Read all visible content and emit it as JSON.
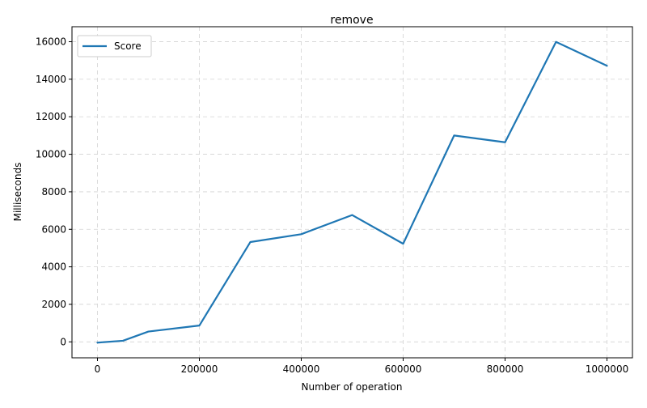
{
  "chart_data": {
    "type": "line",
    "title": "remove",
    "xlabel": "Number of operation",
    "ylabel": "Milliseconds",
    "x": [
      0,
      50000,
      100000,
      200000,
      300000,
      400000,
      500000,
      600000,
      700000,
      800000,
      900000,
      1000000
    ],
    "series": [
      {
        "name": "Score",
        "color": "#1f77b4",
        "values": [
          -40,
          60,
          550,
          870,
          5320,
          5740,
          6760,
          5230,
          11000,
          10640,
          15990,
          14720
        ]
      }
    ],
    "xlim": [
      -50000,
      1050000
    ],
    "ylim": [
      -850,
      16800
    ],
    "x_ticks": [
      0,
      200000,
      400000,
      600000,
      800000,
      1000000
    ],
    "x_tick_labels": [
      "0",
      "200000",
      "400000",
      "600000",
      "800000",
      "1000000"
    ],
    "y_ticks": [
      0,
      2000,
      4000,
      6000,
      8000,
      10000,
      12000,
      14000,
      16000
    ],
    "y_tick_labels": [
      "0",
      "2000",
      "4000",
      "6000",
      "8000",
      "10000",
      "12000",
      "14000",
      "16000"
    ],
    "grid": true,
    "legend_position": "top-left"
  }
}
